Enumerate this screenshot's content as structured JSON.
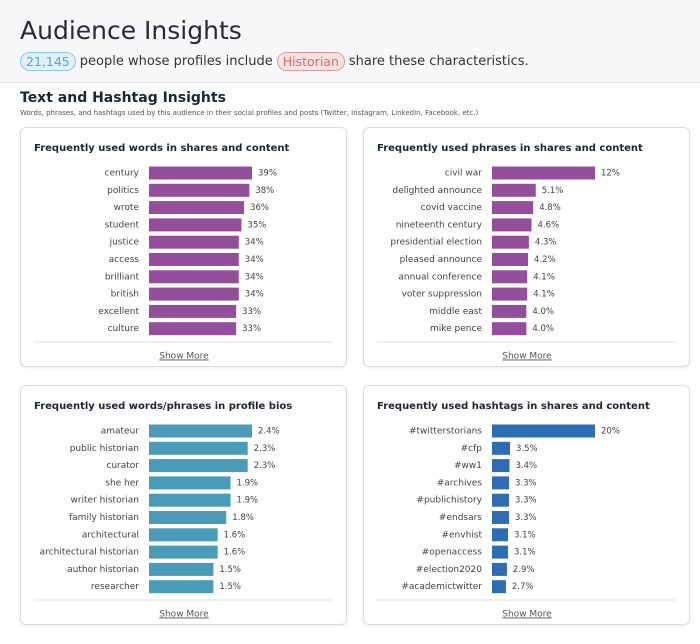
{
  "header": {
    "title": "Audience Insights",
    "count": "21,145",
    "text_before_tag": "people whose profiles include",
    "tag": "Historian",
    "text_after_tag": "share these characteristics."
  },
  "section": {
    "title": "Text and Hashtag Insights",
    "subtitle": "Words, phrases, and hashtags used by this audience in their social profiles and posts (Twitter, Instagram, LinkedIn, Facebook, etc.)"
  },
  "chart_data": [
    {
      "type": "bar",
      "orientation": "horizontal",
      "title": "Frequently used words in shares and content",
      "color": "#944f9c",
      "categories": [
        "century",
        "politics",
        "wrote",
        "student",
        "justice",
        "access",
        "brilliant",
        "british",
        "excellent",
        "culture"
      ],
      "values": [
        39,
        38,
        36,
        35,
        34,
        34,
        34,
        34,
        33,
        33
      ],
      "value_labels": [
        "39%",
        "38%",
        "36%",
        "35%",
        "34%",
        "34%",
        "34%",
        "34%",
        "33%",
        "33%"
      ],
      "show_more": "Show More"
    },
    {
      "type": "bar",
      "orientation": "horizontal",
      "title": "Frequently used phrases in shares and content",
      "color": "#944f9c",
      "categories": [
        "civil war",
        "delighted announce",
        "covid vaccine",
        "nineteenth century",
        "presidential election",
        "pleased announce",
        "annual conference",
        "voter suppression",
        "middle east",
        "mike pence"
      ],
      "values": [
        12,
        5.1,
        4.8,
        4.6,
        4.3,
        4.2,
        4.1,
        4.1,
        4,
        4
      ],
      "value_labels": [
        "12%",
        "5.1%",
        "4.8%",
        "4.6%",
        "4.3%",
        "4.2%",
        "4.1%",
        "4.1%",
        "4.0%",
        "4.0%"
      ],
      "show_more": "Show More"
    },
    {
      "type": "bar",
      "orientation": "horizontal",
      "title": "Frequently used words/phrases in profile bios",
      "color": "#4a9bb7",
      "categories": [
        "amateur",
        "public historian",
        "curator",
        "she her",
        "writer historian",
        "family historian",
        "architectural",
        "architectural historian",
        "author historian",
        "researcher"
      ],
      "values": [
        2.4,
        2.3,
        2.3,
        1.9,
        1.9,
        1.8,
        1.6,
        1.6,
        1.5,
        1.5
      ],
      "value_labels": [
        "2.4%",
        "2.3%",
        "2.3%",
        "1.9%",
        "1.9%",
        "1.8%",
        "1.6%",
        "1.6%",
        "1.5%",
        "1.5%"
      ],
      "show_more": "Show More"
    },
    {
      "type": "bar",
      "orientation": "horizontal",
      "title": "Frequently used hashtags in shares and content",
      "color": "#2e6db4",
      "categories": [
        "#twitterstorians",
        "#cfp",
        "#ww1",
        "#archives",
        "#publichistory",
        "#endsars",
        "#envhist",
        "#openaccess",
        "#election2020",
        "#academictwitter"
      ],
      "values": [
        20,
        3.5,
        3.4,
        3.3,
        3.3,
        3.3,
        3.1,
        3.1,
        2.9,
        2.7
      ],
      "value_labels": [
        "20%",
        "3.5%",
        "3.4%",
        "3.3%",
        "3.3%",
        "3.3%",
        "3.1%",
        "3.1%",
        "2.9%",
        "2.7%"
      ],
      "show_more": "Show More"
    }
  ]
}
